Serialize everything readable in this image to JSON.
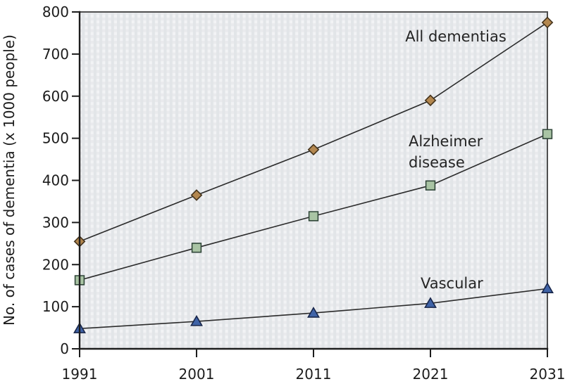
{
  "chart_data": {
    "type": "line",
    "title": "",
    "xlabel": "",
    "ylabel": "No. of cases of dementia (x 1000 people)",
    "x": [
      1991,
      2001,
      2011,
      2021,
      2031
    ],
    "xticks": [
      "1991",
      "2001",
      "2011",
      "2021",
      "2031"
    ],
    "yticks": [
      "0",
      "100",
      "200",
      "300",
      "400",
      "500",
      "600",
      "700",
      "800"
    ],
    "ylim": [
      0,
      800
    ],
    "ytick_step": 100,
    "grid": "subtle woven/gingham pattern in plot background",
    "legend_position": "labels placed next to lines inside plot",
    "series": [
      {
        "name": "All dementias",
        "label_lines": [
          "All dementias"
        ],
        "marker": "diamond",
        "marker_fill": "#b3874f",
        "marker_stroke": "#44331c",
        "line_color": "#2b2b2b",
        "values": [
          255,
          365,
          473,
          590,
          775
        ]
      },
      {
        "name": "Alzheimer disease",
        "label_lines": [
          "Alzheimer",
          "disease"
        ],
        "marker": "square",
        "marker_fill": "#a9c4a4",
        "marker_stroke": "#31473a",
        "line_color": "#2b2b2b",
        "values": [
          163,
          240,
          315,
          388,
          510
        ]
      },
      {
        "name": "Vascular",
        "label_lines": [
          "Vascular"
        ],
        "marker": "triangle",
        "marker_fill": "#3f63a7",
        "marker_stroke": "#18264a",
        "line_color": "#2b2b2b",
        "values": [
          48,
          65,
          85,
          108,
          143
        ]
      }
    ],
    "colors": {
      "plot_bg_base": "#f2f3f5",
      "plot_bg_weave": "#e2e5e8",
      "plot_border": "#4f4f4f",
      "axis": "#1c1c1c",
      "text": "#1c1c1c"
    }
  }
}
